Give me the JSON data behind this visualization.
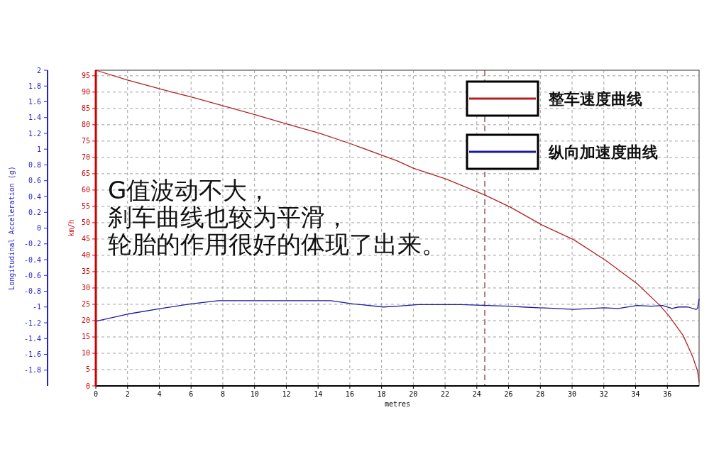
{
  "chart_data": {
    "type": "line",
    "xlabel": "metres",
    "ylabel": "km/h",
    "y2label": "Longitudinal Acceleration (g)",
    "xlim": [
      0,
      38
    ],
    "xticks": [
      0,
      2,
      4,
      6,
      8,
      10,
      12,
      14,
      16,
      18,
      20,
      22,
      24,
      26,
      28,
      30,
      32,
      34,
      36
    ],
    "ylim": [
      0,
      96.7
    ],
    "yticks": [
      0,
      5,
      10,
      15,
      20,
      25,
      30,
      35,
      40,
      45,
      50,
      55,
      60,
      65,
      70,
      75,
      80,
      85,
      90,
      95
    ],
    "y2lim": [
      -2,
      2
    ],
    "y2ticks": [
      -1.8,
      -1.6,
      -1.4,
      -1.2,
      -1,
      -0.8,
      -0.6,
      -0.4,
      -0.2,
      0,
      0.2,
      0.4,
      0.6,
      0.8,
      1,
      1.2,
      1.4,
      1.6,
      1.8,
      2
    ],
    "grid": true,
    "legend": "top right",
    "line_style": "solid",
    "marker": "none",
    "series": [
      {
        "name": "整车速度曲线",
        "color": "#b22222",
        "x": [
          0,
          2,
          4.1,
          6,
          8.1,
          10.1,
          12.2,
          14.1,
          16.1,
          19,
          20,
          22.1,
          24.5,
          26.1,
          28.1,
          30.1,
          32.1,
          34.1,
          35.5,
          36.1,
          37,
          37.6,
          37.9,
          38
        ],
        "values": [
          96.7,
          93.7,
          90.9,
          88.5,
          85.7,
          83,
          80,
          77.4,
          74.1,
          68.9,
          66.7,
          63.3,
          58.5,
          54.8,
          49.3,
          44.8,
          38.5,
          31.3,
          24.8,
          21.5,
          15.4,
          8.9,
          4.6,
          1.3
        ]
      },
      {
        "name": "纵向加速度曲线",
        "color": "#1a1aa0",
        "axis": "y2",
        "x": [
          0,
          2,
          4.1,
          6,
          7.7,
          14.1,
          14.8,
          16.2,
          18.1,
          19,
          20.3,
          23,
          26,
          26.9,
          29,
          30.1,
          32,
          32.9,
          34.1,
          35,
          35.7,
          36.3,
          36.7,
          37.3,
          37.8,
          37.9,
          38
        ],
        "values": [
          -1.18,
          -1.09,
          -1.02,
          -0.96,
          -0.92,
          -0.92,
          -0.92,
          -0.96,
          -1,
          -0.99,
          -0.97,
          -0.97,
          -0.99,
          -1,
          -1.02,
          -1.03,
          -1.01,
          -1.02,
          -0.98,
          -0.99,
          -0.98,
          -1.02,
          -1,
          -1,
          -1.03,
          -1.02,
          -0.9
        ]
      }
    ],
    "ref_lines": [
      {
        "axis": "x",
        "value": 24.5,
        "color": "#8b3a3a",
        "line_style": "dashed"
      }
    ],
    "annotations": [
      "G值波动不大，",
      "刹车曲线也较为平滑，",
      "轮胎的作用很好的体现了出来。"
    ]
  }
}
